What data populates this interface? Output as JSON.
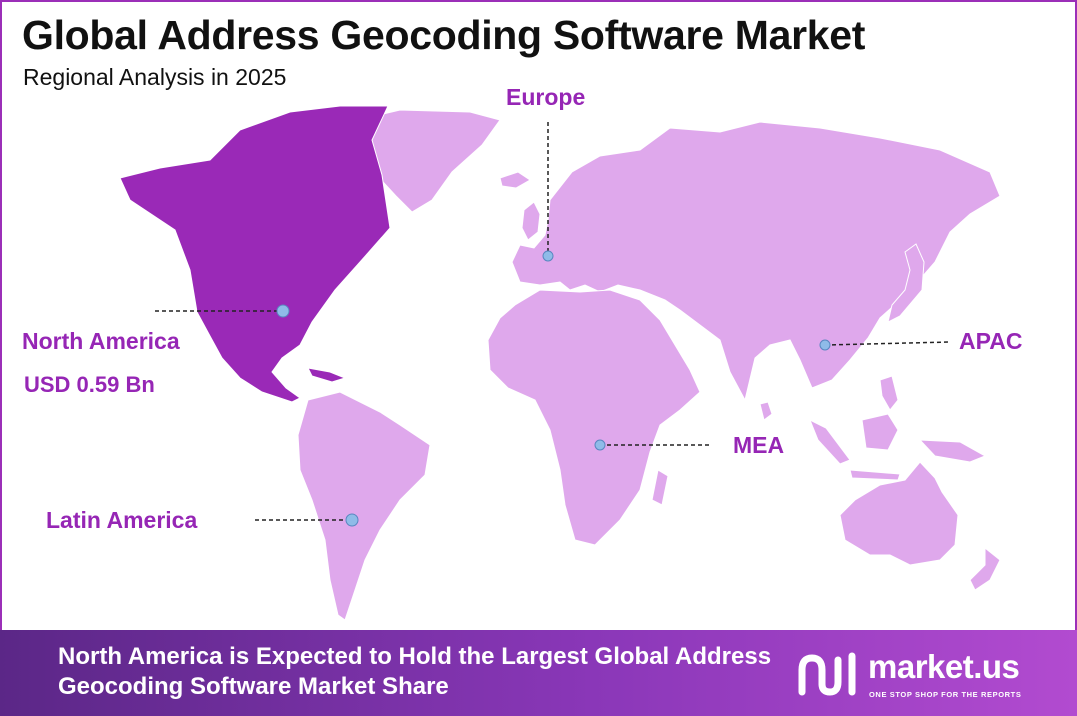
{
  "header": {
    "title": "Global Address Geocoding Software Market",
    "subtitle": "Regional Analysis in 2025"
  },
  "regions": {
    "europe": {
      "label": "Europe"
    },
    "north_america": {
      "label": "North America",
      "value": "USD 0.59 Bn"
    },
    "apac": {
      "label": "APAC"
    },
    "mea": {
      "label": "MEA"
    },
    "latin_america": {
      "label": "Latin America"
    }
  },
  "footer": {
    "message": "North America is Expected to Hold the Largest Global Address Geocoding Software Market Share"
  },
  "brand": {
    "name": "market.us",
    "tagline": "ONE STOP SHOP FOR THE REPORTS"
  },
  "colors": {
    "highlight_region": "#9a29b7",
    "other_regions": "#dfa8ec",
    "label_text": "#9626b5",
    "marker": "#8fbbe8",
    "frame": "#9b2fb8"
  },
  "icons": {
    "marker": "circle-marker-icon",
    "logo": "market-us-logo-icon"
  }
}
